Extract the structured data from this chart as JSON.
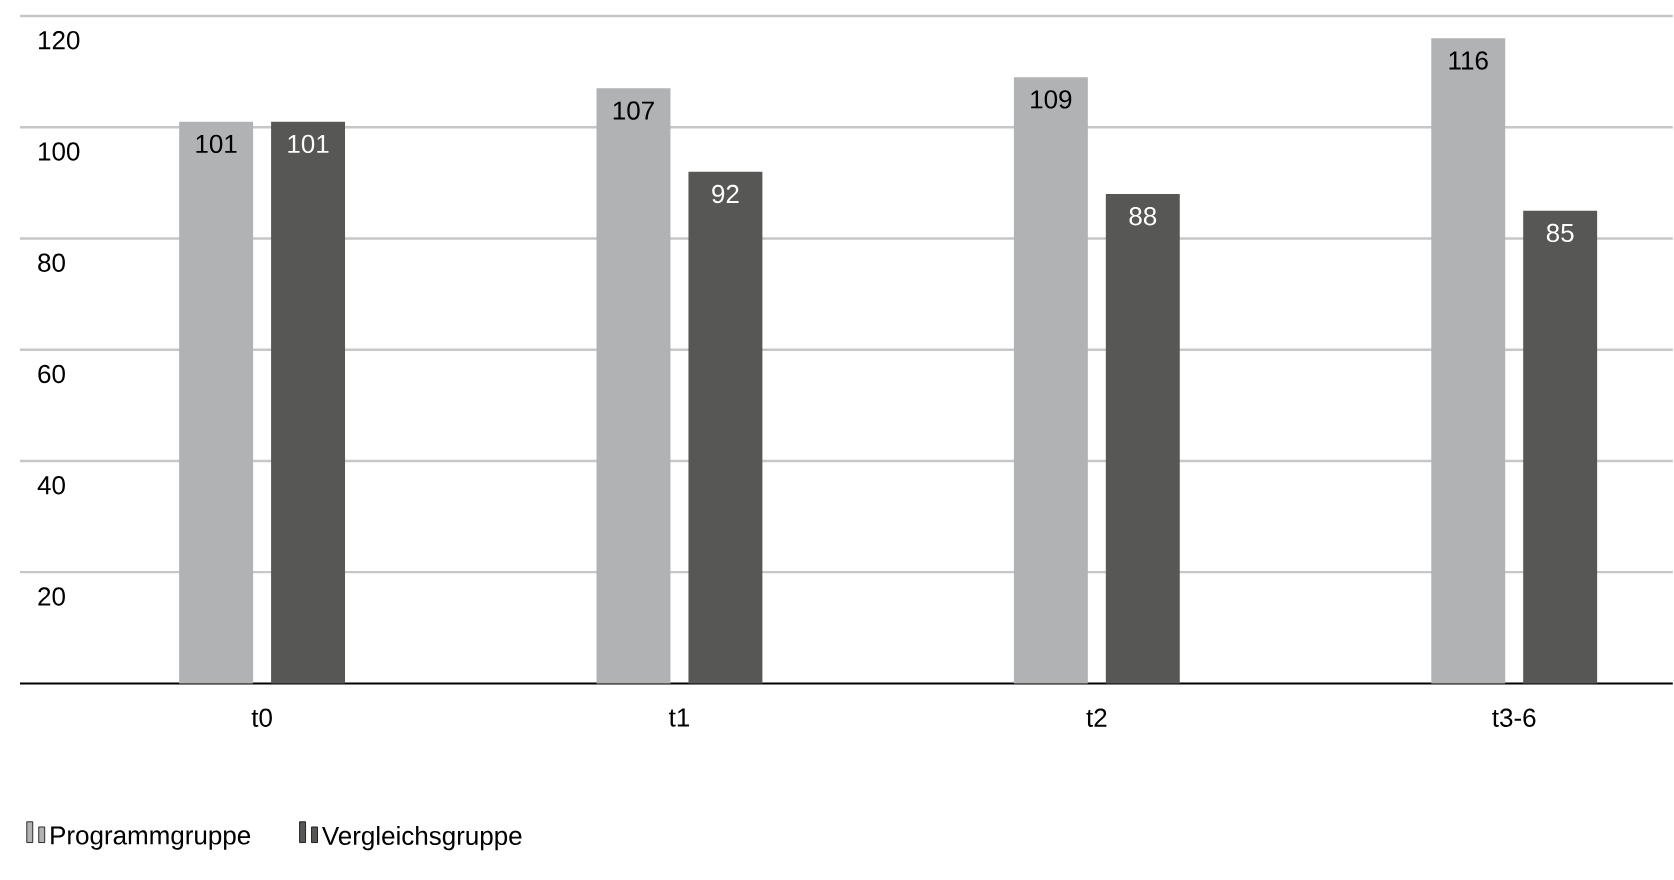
{
  "chart_data": {
    "type": "bar",
    "categories": [
      "t0",
      "t1",
      "t2",
      "t3-6"
    ],
    "series": [
      {
        "name": "Programmgruppe",
        "color": "#b1b2b3",
        "values": [
          101,
          107,
          109,
          116
        ]
      },
      {
        "name": "Vergleichsgruppe",
        "color": "#575756",
        "values": [
          101,
          92,
          88,
          85
        ]
      }
    ],
    "ylim": [
      0,
      120
    ],
    "yticks": [
      20,
      40,
      60,
      80,
      100,
      120
    ],
    "grid": "y",
    "legend": "bottom left",
    "data_labels": true
  }
}
